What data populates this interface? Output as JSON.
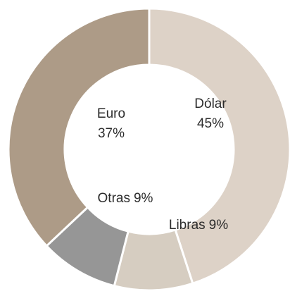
{
  "chart_data": {
    "type": "donut",
    "categories": [
      "Dólar",
      "Libras",
      "Otras",
      "Euro"
    ],
    "values": [
      45,
      9,
      9,
      37
    ],
    "value_labels": [
      "45%",
      "9%",
      "9%",
      "37%"
    ],
    "colors": [
      "#ddd2c7",
      "#d6cdc1",
      "#969696",
      "#ad9b87"
    ]
  }
}
